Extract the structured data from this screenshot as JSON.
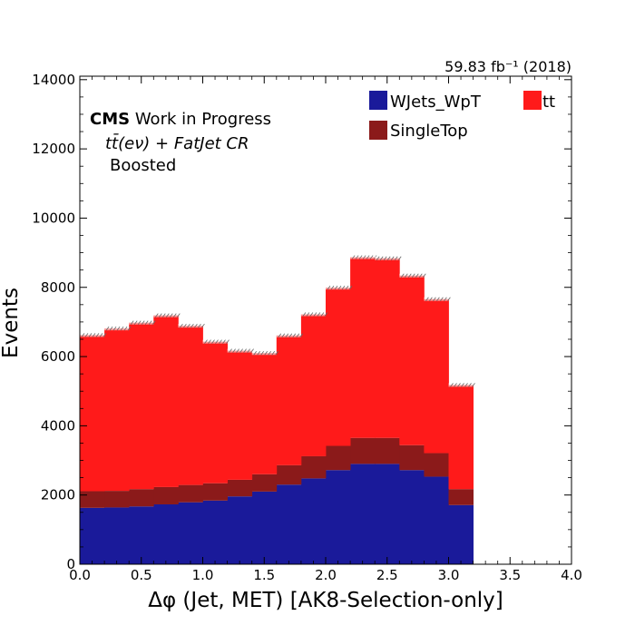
{
  "chart_data": {
    "type": "bar",
    "stacked": true,
    "xlabel": "Δφ (Jet, MET) [AK8-Selection-only]",
    "ylabel": "Events",
    "xlim": [
      0.0,
      4.0
    ],
    "ylim": [
      0,
      14100
    ],
    "xticks": [
      0.0,
      0.5,
      1.0,
      1.5,
      2.0,
      2.5,
      3.0,
      3.5,
      4.0
    ],
    "xtick_labels": [
      "0.0",
      "0.5",
      "1.0",
      "1.5",
      "2.0",
      "2.5",
      "3.0",
      "3.5",
      "4.0"
    ],
    "yticks": [
      0,
      2000,
      4000,
      6000,
      8000,
      10000,
      12000,
      14000
    ],
    "ytick_labels": [
      "0",
      "2000",
      "4000",
      "6000",
      "8000",
      "10000",
      "12000",
      "14000"
    ],
    "bin_edges": [
      0.0,
      0.2,
      0.4,
      0.6,
      0.8,
      1.0,
      1.2,
      1.4,
      1.6,
      1.8,
      2.0,
      2.2,
      2.4,
      2.6,
      2.8,
      3.0,
      3.2
    ],
    "series": [
      {
        "name": "WJets_WpT",
        "color": "#1a1a9a",
        "values": [
          1630,
          1640,
          1670,
          1730,
          1790,
          1840,
          1960,
          2100,
          2300,
          2480,
          2720,
          2900,
          2900,
          2720,
          2530,
          1710
        ]
      },
      {
        "name": "SingleTop",
        "color": "#8b1a1a",
        "values": [
          480,
          480,
          500,
          500,
          500,
          500,
          480,
          500,
          560,
          640,
          700,
          750,
          750,
          720,
          680,
          460
        ]
      },
      {
        "name": "tt",
        "color": "#ff1a1a",
        "values": [
          4510,
          4690,
          4810,
          4960,
          4600,
          4090,
          3730,
          3500,
          3750,
          4100,
          4570,
          5220,
          5190,
          4900,
          4450,
          3010
        ]
      }
    ],
    "legend": {
      "placement": "top-right",
      "entries": [
        {
          "label": "WJets_WpT",
          "color": "#1a1a9a"
        },
        {
          "label": "tt",
          "color": "#ff1a1a"
        },
        {
          "label": "SingleTop",
          "color": "#8b1a1a"
        }
      ]
    },
    "annotations": {
      "cms": "CMS",
      "cms_sub": " Work in Progress",
      "channel": "tt̄(eν) + FatJet CR",
      "region": "Boosted",
      "lumi": "59.83 fb⁻¹ (2018)"
    }
  }
}
